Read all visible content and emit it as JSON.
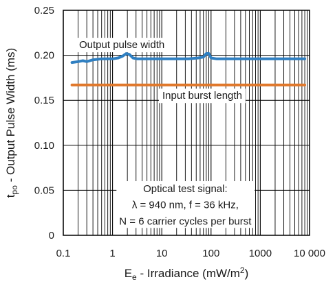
{
  "chart_data": {
    "type": "line",
    "xscale": "log",
    "xlim": [
      0.1,
      10000
    ],
    "ylim": [
      0,
      0.25
    ],
    "grid": true,
    "xlabel_main": "E",
    "xlabel_sub": "e",
    "xlabel_rest": " - Irradiance (mW/m",
    "xlabel_sup": "2",
    "xlabel_end": ")",
    "ylabel_main": "t",
    "ylabel_sub": "po",
    "ylabel_rest": " - Output Pulse Width (ms)",
    "xticks": [
      {
        "value": 0.1,
        "label": "0.1"
      },
      {
        "value": 1,
        "label": "1"
      },
      {
        "value": 10,
        "label": "10"
      },
      {
        "value": 100,
        "label": "100"
      },
      {
        "value": 1000,
        "label": "1000"
      },
      {
        "value": 10000,
        "label": "10 000"
      }
    ],
    "yticks": [
      {
        "value": 0,
        "label": "0"
      },
      {
        "value": 0.05,
        "label": "0.05"
      },
      {
        "value": 0.1,
        "label": "0.10"
      },
      {
        "value": 0.15,
        "label": "0.15"
      },
      {
        "value": 0.2,
        "label": "0.20"
      },
      {
        "value": 0.25,
        "label": "0.25"
      }
    ],
    "series": [
      {
        "name": "Output pulse width",
        "color": "#2f7fc1",
        "x": [
          0.15,
          0.2,
          0.25,
          0.3,
          0.4,
          0.6,
          0.8,
          1.0,
          1.3,
          1.6,
          1.9,
          2.2,
          2.6,
          3.2,
          5,
          8,
          12,
          20,
          35,
          55,
          70,
          80,
          90,
          100,
          130,
          200,
          400,
          1000,
          3000,
          8000
        ],
        "y": [
          0.192,
          0.193,
          0.194,
          0.193,
          0.195,
          0.196,
          0.196,
          0.196,
          0.197,
          0.199,
          0.202,
          0.201,
          0.197,
          0.196,
          0.196,
          0.196,
          0.196,
          0.196,
          0.196,
          0.197,
          0.198,
          0.202,
          0.202,
          0.197,
          0.196,
          0.196,
          0.196,
          0.196,
          0.196,
          0.196
        ]
      },
      {
        "name": "Input burst length",
        "color": "#e0782b",
        "x": [
          0.15,
          8000
        ],
        "y": [
          0.167,
          0.167
        ]
      }
    ],
    "annotations": [
      {
        "text": "Output pulse width"
      },
      {
        "text": "Input burst length"
      }
    ],
    "note_lines": [
      "Optical test signal:",
      "λ = 940 nm, f = 36 kHz,",
      "N = 6 carrier cycles per burst"
    ]
  }
}
